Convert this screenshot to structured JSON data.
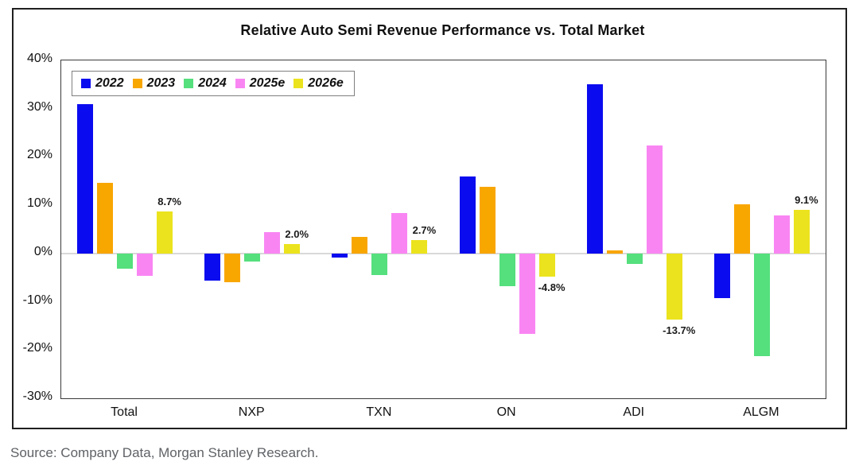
{
  "chart_data": {
    "type": "bar",
    "title": "Relative Auto Semi Revenue Performance vs. Total Market",
    "categories": [
      "Total",
      "NXP",
      "TXN",
      "ON",
      "ADI",
      "ALGM"
    ],
    "series": [
      {
        "name": "2022",
        "color": "#0b0bf0",
        "values": [
          31.0,
          -5.7,
          -0.9,
          15.9,
          35.1,
          -9.3
        ]
      },
      {
        "name": "2023",
        "color": "#f8a600",
        "values": [
          14.7,
          -6.0,
          3.4,
          13.8,
          0.7,
          10.2
        ]
      },
      {
        "name": "2024",
        "color": "#55df7d",
        "values": [
          -3.1,
          -1.7,
          -4.4,
          -6.7,
          -2.2,
          -21.2
        ]
      },
      {
        "name": "2025e",
        "color": "#f985f3",
        "values": [
          -4.6,
          4.4,
          8.3,
          -16.6,
          22.4,
          7.9
        ]
      },
      {
        "name": "2026e",
        "color": "#ebe31d",
        "values": [
          8.7,
          2.0,
          2.7,
          -4.8,
          -13.7,
          9.1
        ],
        "point_labels": [
          "8.7%",
          "2.0%",
          "2.7%",
          "-4.8%",
          "-13.7%",
          "9.1%"
        ]
      }
    ],
    "ylim": [
      -30,
      40
    ],
    "yticks": [
      40,
      30,
      20,
      10,
      0,
      -10,
      -20,
      -30
    ],
    "ytick_labels": [
      "40%",
      "30%",
      "20%",
      "10%",
      "0%",
      "-10%",
      "-20%",
      "-30%"
    ],
    "grid": "zero-line-only",
    "legend_position": "top-left-inside-plot",
    "xlabel": "",
    "ylabel": ""
  },
  "source_note": "Source: Company Data, Morgan Stanley Research.",
  "accent_colors": {
    "zero_line": "#d9d9d9",
    "frame_border": "#1f1f1f",
    "plot_border": "#3a3a3a",
    "source_text": "#5f6266"
  }
}
